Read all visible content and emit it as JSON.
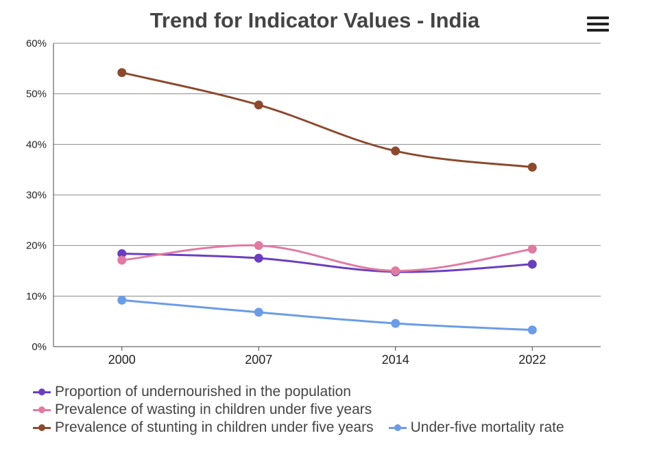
{
  "chart_data": {
    "type": "line",
    "title": "Trend for Indicator Values - India",
    "categories": [
      "2000",
      "2007",
      "2014",
      "2022"
    ],
    "ylim": [
      0,
      60
    ],
    "yticks": [
      "0%",
      "10%",
      "20%",
      "30%",
      "40%",
      "50%",
      "60%"
    ],
    "yunit": "%",
    "grid": true,
    "legend_position": "bottom-left",
    "series": [
      {
        "name": "Proportion of undernourished in the population",
        "color": "#6a3fbf",
        "values": [
          18.4,
          17.5,
          14.8,
          16.3
        ]
      },
      {
        "name": "Prevalence of wasting in children under five years",
        "color": "#e07ba2",
        "values": [
          17.1,
          20.0,
          15.0,
          19.3
        ]
      },
      {
        "name": "Prevalence of stunting in children under five years",
        "color": "#8b4a2e",
        "values": [
          54.2,
          47.8,
          38.7,
          35.5
        ]
      },
      {
        "name": "Under-five mortality rate",
        "color": "#6b9ce6",
        "values": [
          9.2,
          6.8,
          4.6,
          3.3
        ]
      }
    ]
  },
  "menu": {
    "icon": "hamburger-menu-icon"
  }
}
